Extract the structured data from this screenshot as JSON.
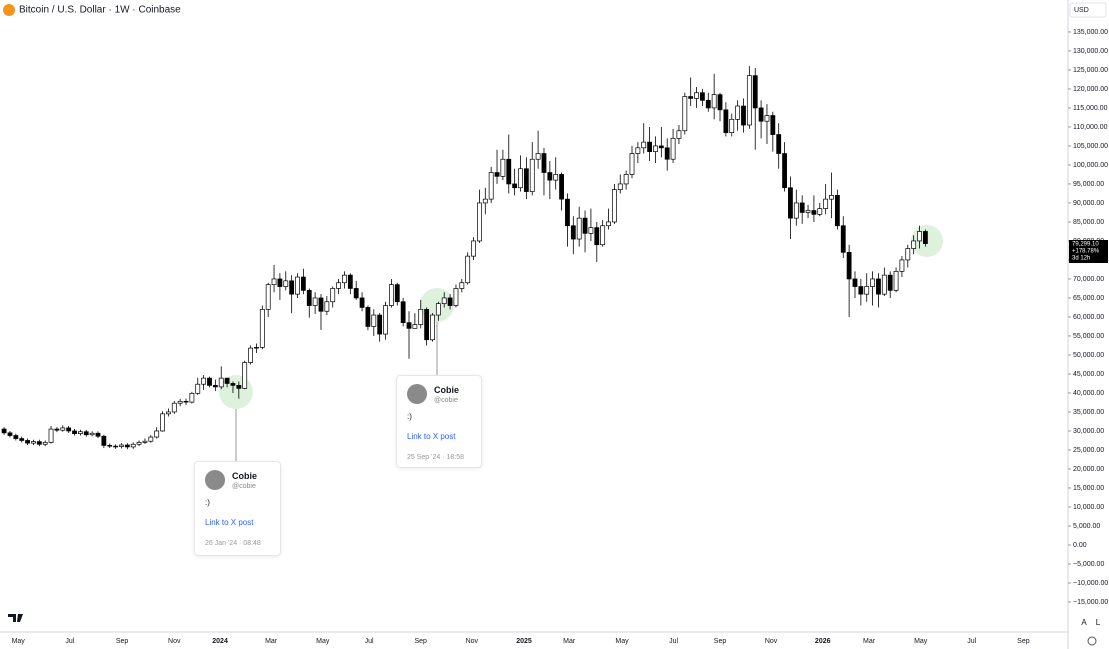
{
  "chart_data": {
    "type": "candlestick",
    "title": "Bitcoin / U.S. Dollar · 1W · Coinbase",
    "currency": "USD",
    "up_color": "#ffffff",
    "down_color": "#000000",
    "grid": false,
    "ylim": [
      -22900,
      143400
    ],
    "yticks": [
      {
        "value": 135000,
        "label": "135,000.00"
      },
      {
        "value": 130000,
        "label": "130,000.00"
      },
      {
        "value": 125000,
        "label": "125,000.00"
      },
      {
        "value": 120000,
        "label": "120,000.00"
      },
      {
        "value": 115000,
        "label": "115,000.00"
      },
      {
        "value": 110000,
        "label": "110,000.00"
      },
      {
        "value": 105000,
        "label": "105,000.00"
      },
      {
        "value": 100000,
        "label": "100,000.00"
      },
      {
        "value": 95000,
        "label": "95,000.00"
      },
      {
        "value": 90000,
        "label": "90,000.00"
      },
      {
        "value": 85000,
        "label": "85,000.00"
      },
      {
        "value": 80000,
        "label": "80,000.00"
      },
      {
        "value": 75000,
        "label": "75,000.00"
      },
      {
        "value": 70000,
        "label": "70,000.00"
      },
      {
        "value": 65000,
        "label": "65,000.00"
      },
      {
        "value": 60000,
        "label": "60,000.00"
      },
      {
        "value": 55000,
        "label": "55,000.00"
      },
      {
        "value": 50000,
        "label": "50,000.00"
      },
      {
        "value": 45000,
        "label": "45,000.00"
      },
      {
        "value": 40000,
        "label": "40,000.00"
      },
      {
        "value": 35000,
        "label": "35,000.00"
      },
      {
        "value": 30000,
        "label": "30,000.00"
      },
      {
        "value": 25000,
        "label": "25,000.00"
      },
      {
        "value": 20000,
        "label": "20,000.00"
      },
      {
        "value": 15000,
        "label": "15,000.00"
      },
      {
        "value": 10000,
        "label": "10,000.00"
      },
      {
        "value": 5000,
        "label": "5,000.00"
      },
      {
        "value": 0,
        "label": "0.00"
      },
      {
        "value": -5000,
        "label": "−5,000.00"
      },
      {
        "value": -10000,
        "label": "−10,000.00"
      },
      {
        "value": -15000,
        "label": "−15,000.00"
      }
    ],
    "xlim": [
      -0.7,
      181.3
    ],
    "xticks": [
      {
        "value": 2.4,
        "label": "May"
      },
      {
        "value": 11.2,
        "label": "Jul"
      },
      {
        "value": 20.1,
        "label": "Sep"
      },
      {
        "value": 29,
        "label": "Nov"
      },
      {
        "value": 36.8,
        "label": "2024"
      },
      {
        "value": 45.5,
        "label": "Mar"
      },
      {
        "value": 54.3,
        "label": "May"
      },
      {
        "value": 62.2,
        "label": "Jul"
      },
      {
        "value": 71,
        "label": "Sep"
      },
      {
        "value": 79.7,
        "label": "Nov"
      },
      {
        "value": 88.6,
        "label": "2025"
      },
      {
        "value": 96.3,
        "label": "Mar"
      },
      {
        "value": 105.3,
        "label": "May"
      },
      {
        "value": 114.1,
        "label": "Jul"
      },
      {
        "value": 122,
        "label": "Sep"
      },
      {
        "value": 130.7,
        "label": "Nov"
      },
      {
        "value": 139.5,
        "label": "2026"
      },
      {
        "value": 147.4,
        "label": "Mar"
      },
      {
        "value": 156.2,
        "label": "May"
      },
      {
        "value": 164.9,
        "label": "Jul"
      },
      {
        "value": 173.7,
        "label": "Sep"
      }
    ],
    "candles": [
      [
        30500,
        31000,
        29000,
        29500
      ],
      [
        29500,
        30000,
        28300,
        28800
      ],
      [
        28800,
        29300,
        27500,
        28000
      ],
      [
        28000,
        28500,
        27000,
        27500
      ],
      [
        27500,
        28000,
        26300,
        26800
      ],
      [
        26800,
        27700,
        26300,
        27200
      ],
      [
        27200,
        27700,
        26000,
        26500
      ],
      [
        26500,
        27500,
        26000,
        27000
      ],
      [
        27000,
        31300,
        26700,
        30500
      ],
      [
        30500,
        31000,
        29700,
        30200
      ],
      [
        30200,
        31500,
        29800,
        30800
      ],
      [
        30800,
        31300,
        29500,
        30000
      ],
      [
        30000,
        30500,
        28800,
        29300
      ],
      [
        29300,
        30300,
        28800,
        29800
      ],
      [
        29800,
        30300,
        28500,
        29000
      ],
      [
        29000,
        29900,
        28600,
        29400
      ],
      [
        29400,
        29900,
        28100,
        28600
      ],
      [
        28600,
        29000,
        25500,
        26200
      ],
      [
        26200,
        26700,
        25500,
        26000
      ],
      [
        26000,
        26500,
        25300,
        25900
      ],
      [
        25900,
        26800,
        25400,
        26300
      ],
      [
        26300,
        26800,
        25200,
        25800
      ],
      [
        25800,
        27000,
        25300,
        26500
      ],
      [
        26500,
        27500,
        26000,
        27000
      ],
      [
        27000,
        28000,
        26600,
        27300
      ],
      [
        27300,
        28900,
        26900,
        28400
      ],
      [
        28400,
        31000,
        28000,
        30000
      ],
      [
        30000,
        35200,
        29800,
        34500
      ],
      [
        34500,
        35900,
        33800,
        35000
      ],
      [
        35000,
        37900,
        34500,
        37300
      ],
      [
        37300,
        38400,
        36500,
        37800
      ],
      [
        37800,
        38500,
        36800,
        37600
      ],
      [
        37600,
        40300,
        37200,
        39900
      ],
      [
        39900,
        44000,
        39500,
        42300
      ],
      [
        42300,
        44700,
        40800,
        43900
      ],
      [
        43900,
        44300,
        41500,
        42000
      ],
      [
        42000,
        43500,
        40500,
        41600
      ],
      [
        41600,
        47000,
        41000,
        43900
      ],
      [
        43900,
        44000,
        41500,
        42500
      ],
      [
        42500,
        43000,
        40000,
        42000
      ],
      [
        42000,
        43000,
        38500,
        41200
      ],
      [
        41200,
        48500,
        41000,
        48000
      ],
      [
        48000,
        52500,
        47500,
        51800
      ],
      [
        51800,
        53000,
        50500,
        52000
      ],
      [
        52000,
        63000,
        51500,
        62000
      ],
      [
        62000,
        69000,
        60000,
        68500
      ],
      [
        68500,
        73700,
        66500,
        70000
      ],
      [
        70000,
        71500,
        64500,
        68000
      ],
      [
        68000,
        72000,
        67000,
        69500
      ],
      [
        69500,
        71000,
        61000,
        66000
      ],
      [
        66000,
        71500,
        65000,
        70500
      ],
      [
        70500,
        72700,
        66000,
        67000
      ],
      [
        67000,
        67500,
        59800,
        63000
      ],
      [
        63000,
        66500,
        60800,
        65000
      ],
      [
        65000,
        66000,
        56600,
        61500
      ],
      [
        61500,
        65500,
        60500,
        64000
      ],
      [
        64000,
        68000,
        62500,
        67500
      ],
      [
        67500,
        70000,
        66000,
        69000
      ],
      [
        69000,
        72000,
        67500,
        71000
      ],
      [
        71000,
        71500,
        66000,
        67500
      ],
      [
        67500,
        69500,
        64500,
        65000
      ],
      [
        65000,
        66500,
        61500,
        62500
      ],
      [
        62500,
        63000,
        56500,
        57500
      ],
      [
        57500,
        62000,
        55000,
        60500
      ],
      [
        60500,
        61000,
        53500,
        55500
      ],
      [
        55500,
        64000,
        54000,
        63000
      ],
      [
        63000,
        70000,
        62500,
        68500
      ],
      [
        68500,
        69000,
        63000,
        64000
      ],
      [
        64000,
        65000,
        57500,
        58500
      ],
      [
        58500,
        61500,
        49000,
        57000
      ],
      [
        57000,
        61000,
        57000,
        58000
      ],
      [
        58000,
        64500,
        57000,
        62000
      ],
      [
        62000,
        62500,
        52500,
        54000
      ],
      [
        54000,
        61000,
        53500,
        60500
      ],
      [
        60500,
        64000,
        59000,
        63500
      ],
      [
        63500,
        66500,
        62500,
        65000
      ],
      [
        65000,
        66000,
        62000,
        63000
      ],
      [
        63000,
        68500,
        62500,
        67500
      ],
      [
        67500,
        70000,
        66500,
        69000
      ],
      [
        69000,
        77000,
        68500,
        76000
      ],
      [
        76000,
        81000,
        75000,
        80000
      ],
      [
        80000,
        93500,
        79500,
        90000
      ],
      [
        90000,
        94000,
        87000,
        91000
      ],
      [
        91000,
        99500,
        90000,
        98000
      ],
      [
        98000,
        104000,
        95000,
        97000
      ],
      [
        97000,
        104000,
        96000,
        101500
      ],
      [
        101500,
        108000,
        92500,
        95000
      ],
      [
        95000,
        99000,
        92000,
        94000
      ],
      [
        94000,
        102500,
        93000,
        99000
      ],
      [
        99000,
        102000,
        91000,
        93000
      ],
      [
        93000,
        106000,
        92000,
        101500
      ],
      [
        101500,
        109000,
        99000,
        103000
      ],
      [
        103000,
        104500,
        92000,
        98000
      ],
      [
        98000,
        101000,
        91000,
        96000
      ],
      [
        96000,
        102000,
        93500,
        97500
      ],
      [
        97500,
        98000,
        88000,
        91000
      ],
      [
        91000,
        92500,
        78500,
        84000
      ],
      [
        84000,
        86500,
        76500,
        80500
      ],
      [
        80500,
        89000,
        78500,
        86000
      ],
      [
        86000,
        88000,
        77000,
        82000
      ],
      [
        82000,
        88500,
        80000,
        83500
      ],
      [
        83500,
        85000,
        74500,
        79000
      ],
      [
        79000,
        85500,
        78500,
        84000
      ],
      [
        84000,
        88500,
        83000,
        85000
      ],
      [
        85000,
        95000,
        84500,
        93500
      ],
      [
        93500,
        97500,
        92500,
        95000
      ],
      [
        95000,
        98500,
        93500,
        97500
      ],
      [
        97500,
        105000,
        96500,
        103000
      ],
      [
        103000,
        106000,
        100500,
        104500
      ],
      [
        104500,
        111000,
        103000,
        106000
      ],
      [
        106000,
        110000,
        101000,
        103500
      ],
      [
        103500,
        107500,
        100500,
        105000
      ],
      [
        105000,
        110000,
        102000,
        104500
      ],
      [
        104500,
        107000,
        98500,
        101500
      ],
      [
        101500,
        109500,
        100500,
        107000
      ],
      [
        107000,
        110500,
        105500,
        109000
      ],
      [
        109000,
        119000,
        108000,
        118000
      ],
      [
        118000,
        123000,
        115500,
        117500
      ],
      [
        117500,
        120500,
        115000,
        119000
      ],
      [
        119000,
        120000,
        115500,
        117000
      ],
      [
        117000,
        119000,
        114000,
        115000
      ],
      [
        115000,
        124000,
        112000,
        118500
      ],
      [
        118500,
        119000,
        111500,
        114500
      ],
      [
        114500,
        116500,
        107500,
        108500
      ],
      [
        108500,
        113500,
        107500,
        112000
      ],
      [
        112000,
        117000,
        109000,
        115500
      ],
      [
        115500,
        117500,
        108500,
        110500
      ],
      [
        110500,
        126000,
        109500,
        123500
      ],
      [
        123500,
        125500,
        104000,
        115000
      ],
      [
        115000,
        117000,
        107000,
        111500
      ],
      [
        111500,
        116000,
        105500,
        113000
      ],
      [
        113000,
        114000,
        103500,
        108000
      ],
      [
        108000,
        111000,
        99000,
        103000
      ],
      [
        103000,
        106000,
        93000,
        94000
      ],
      [
        94000,
        97000,
        80500,
        86000
      ],
      [
        86000,
        93500,
        84000,
        90000
      ],
      [
        90000,
        92000,
        84500,
        87500
      ],
      [
        87500,
        89500,
        86000,
        88000
      ],
      [
        88000,
        92000,
        85000,
        87000
      ],
      [
        87000,
        90000,
        86500,
        88500
      ],
      [
        88500,
        95000,
        87000,
        91000
      ],
      [
        91000,
        98000,
        86000,
        92000
      ],
      [
        92000,
        93500,
        83000,
        84000
      ],
      [
        84000,
        86500,
        75500,
        77000
      ],
      [
        77000,
        79000,
        60000,
        70000
      ],
      [
        70000,
        72000,
        65000,
        68000
      ],
      [
        68000,
        70000,
        63000,
        66000
      ],
      [
        66000,
        71500,
        64000,
        68000
      ],
      [
        68000,
        72000,
        63000,
        70000
      ],
      [
        70000,
        71500,
        62500,
        66000
      ],
      [
        66000,
        73000,
        65500,
        71000
      ],
      [
        71000,
        72000,
        65000,
        67000
      ],
      [
        67000,
        73000,
        66500,
        72000
      ],
      [
        72000,
        76000,
        70500,
        75000
      ],
      [
        75000,
        79000,
        73000,
        78000
      ],
      [
        78000,
        81500,
        76500,
        80000
      ],
      [
        80000,
        84000,
        78000,
        82500
      ],
      [
        82500,
        83000,
        78500,
        79299.1
      ]
    ],
    "price_tag": {
      "label": "79,299.10",
      "change": "+178.78%",
      "countdown": "3d 12h"
    },
    "scale_buttons": [
      "A",
      "L"
    ],
    "annotations": [
      {
        "name": "Cobie",
        "handle": "@cobie",
        "text": ":)",
        "link": "Link to X post",
        "time": "26 Jan '24 · 08:48"
      },
      {
        "name": "Cobie",
        "handle": "@cobie",
        "text": ":)",
        "link": "Link to X post",
        "time": "25 Sep '24 · 18:58"
      }
    ]
  }
}
